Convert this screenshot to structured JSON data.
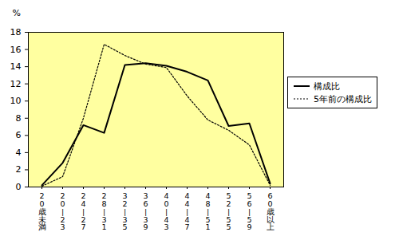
{
  "chart_data": {
    "type": "line",
    "y_label": "%",
    "categories": [
      "20歳未満",
      "20|23",
      "24|27",
      "28|31",
      "32|35",
      "36|39",
      "40|43",
      "44|47",
      "48|51",
      "52|55",
      "56|59",
      "60歳以上"
    ],
    "series": [
      {
        "name": "構成比",
        "color": "#000000",
        "line_style": "solid",
        "values": [
          0.2,
          2.8,
          7.2,
          6.3,
          14.2,
          14.4,
          14.1,
          13.4,
          12.4,
          7.1,
          7.4,
          0.4
        ]
      },
      {
        "name": "5年前の構成比",
        "color": "#000000",
        "line_style": "dotted",
        "values": [
          0.1,
          1.2,
          8.0,
          16.6,
          15.3,
          14.3,
          13.9,
          10.6,
          7.8,
          6.6,
          4.9,
          0.2
        ]
      }
    ],
    "ylim": [
      0,
      18
    ],
    "yticks": [
      0,
      2,
      4,
      6,
      8,
      10,
      12,
      14,
      16,
      18
    ],
    "grid": false,
    "legend": "right"
  }
}
